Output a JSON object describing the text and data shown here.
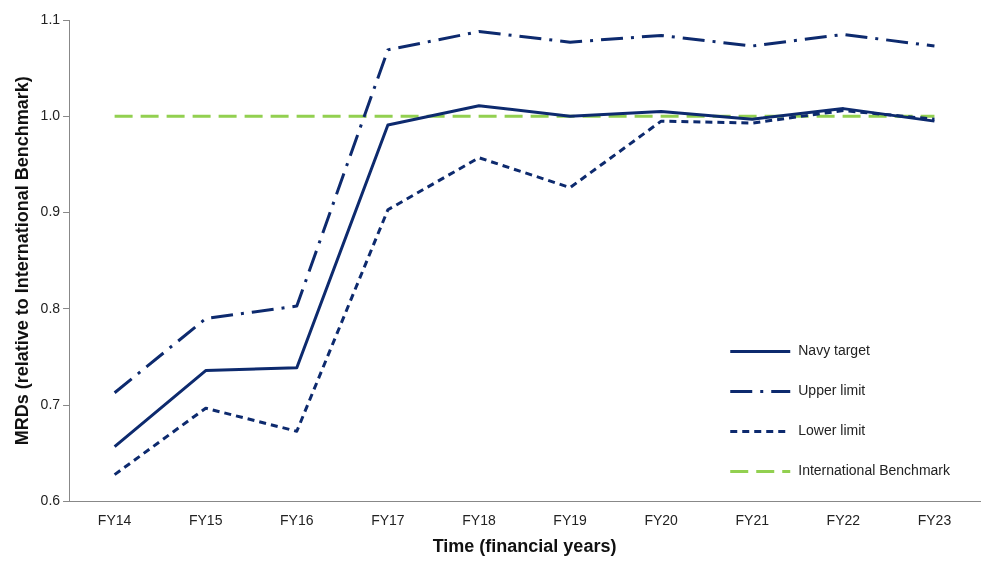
{
  "chart_data": {
    "type": "line",
    "xlabel": "Time (financial years)",
    "ylabel": "MRDs (relative to International Benchmark)",
    "categories": [
      "FY14",
      "FY15",
      "FY16",
      "FY17",
      "FY18",
      "FY19",
      "FY20",
      "FY21",
      "FY22",
      "FY23"
    ],
    "ylim": [
      0.6,
      1.1
    ],
    "yticks": [
      {
        "value": 0.6,
        "label": "0.6"
      },
      {
        "value": 0.7,
        "label": "0.7"
      },
      {
        "value": 0.8,
        "label": "0.8"
      },
      {
        "value": 0.9,
        "label": "0.9"
      },
      {
        "value": 1.0,
        "label": "1.0"
      },
      {
        "value": 1.1,
        "label": "1.1"
      }
    ],
    "grid": false,
    "legend": "bottom right",
    "marker": "none",
    "series": [
      {
        "name": "Navy target",
        "color": "#0d2a6e",
        "line_style": "solid",
        "values": [
          0.657,
          0.736,
          0.739,
          0.991,
          1.011,
          1.0,
          1.005,
          0.997,
          1.008,
          0.995
        ]
      },
      {
        "name": "Upper limit",
        "color": "#0d2a6e",
        "line_style": "dashdot",
        "values": [
          0.713,
          0.79,
          0.803,
          1.069,
          1.088,
          1.077,
          1.084,
          1.073,
          1.085,
          1.073
        ]
      },
      {
        "name": "Lower limit",
        "color": "#0d2a6e",
        "line_style": "dotted",
        "values": [
          0.628,
          0.697,
          0.673,
          0.903,
          0.957,
          0.926,
          0.995,
          0.993,
          1.006,
          0.997
        ]
      },
      {
        "name": "International Benchmark",
        "color": "#92d050",
        "line_style": "dashed",
        "values": [
          1.0,
          1.0,
          1.0,
          1.0,
          1.0,
          1.0,
          1.0,
          1.0,
          1.0,
          1.0
        ]
      }
    ]
  }
}
